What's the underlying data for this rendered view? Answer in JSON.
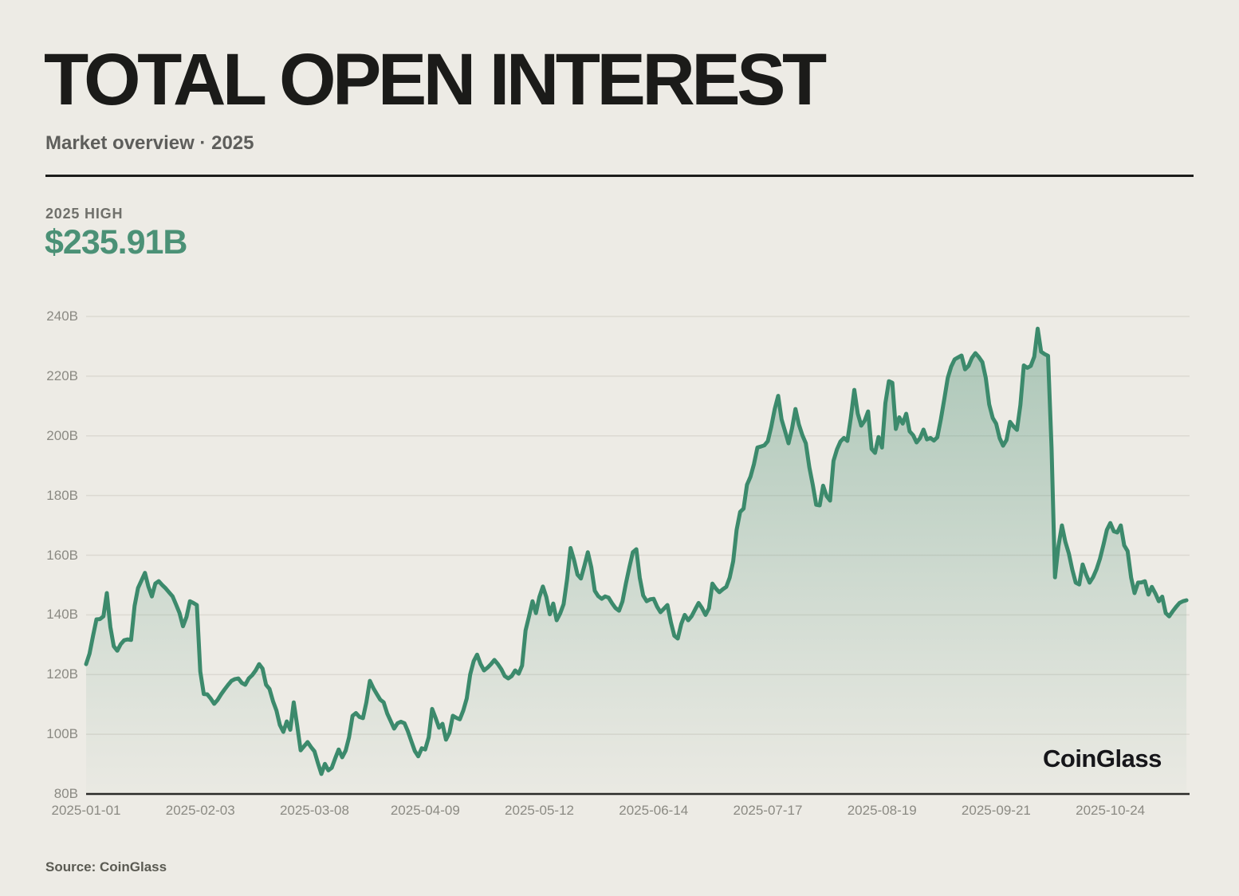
{
  "header": {
    "title": "TOTAL OPEN INTEREST",
    "subtitle": "Market overview · 2025"
  },
  "stat": {
    "label": "2025 HIGH",
    "value": "$235.91B"
  },
  "watermark": "CoinGlass",
  "footer": {
    "source": "Source: CoinGlass"
  },
  "colors": {
    "background": "#edebe5",
    "line": "#3c8a6c",
    "fill": "#4f9377",
    "accent_text": "#4b9176",
    "grid": "#dcd9d2",
    "axis": "#2a2a27",
    "muted_label": "#8b8a83",
    "title": "#1b1b19"
  },
  "chart_data": {
    "type": "area",
    "title": "Total Open Interest 2025",
    "unit": "billions USD",
    "ylim": [
      80,
      240
    ],
    "grid": true,
    "high_2025": 235.91,
    "start_date": "2025-01-01",
    "sampling": "daily",
    "y_ticks": [
      {
        "label": "240B",
        "value": 240
      },
      {
        "label": "220B",
        "value": 220
      },
      {
        "label": "200B",
        "value": 200
      },
      {
        "label": "180B",
        "value": 180
      },
      {
        "label": "160B",
        "value": 160
      },
      {
        "label": "140B",
        "value": 140
      },
      {
        "label": "120B",
        "value": 120
      },
      {
        "label": "100B",
        "value": 100
      },
      {
        "label": "80B",
        "value": 80
      }
    ],
    "x_ticks": [
      {
        "label": "2025-01-01",
        "day": 0
      },
      {
        "label": "2025-02-03",
        "day": 33
      },
      {
        "label": "2025-03-08",
        "day": 66
      },
      {
        "label": "2025-04-09",
        "day": 98
      },
      {
        "label": "2025-05-12",
        "day": 131
      },
      {
        "label": "2025-06-14",
        "day": 164
      },
      {
        "label": "2025-07-17",
        "day": 197
      },
      {
        "label": "2025-08-19",
        "day": 230
      },
      {
        "label": "2025-09-21",
        "day": 263
      },
      {
        "label": "2025-10-24",
        "day": 296
      }
    ],
    "values": [
      123.5,
      127,
      133,
      138.5,
      138.6,
      139.5,
      147.3,
      136,
      129.5,
      128,
      130.2,
      131.5,
      131.8,
      131.6,
      143,
      149,
      151.5,
      154.1,
      149.5,
      146.2,
      150.5,
      151.3,
      150,
      148.9,
      147.5,
      146.2,
      143.5,
      140.6,
      136.2,
      139.3,
      144.6,
      144,
      143.3,
      121,
      113.5,
      113.4,
      112,
      110.2,
      111.5,
      113.4,
      115,
      116.5,
      117.9,
      118.5,
      118.7,
      117.2,
      116.6,
      118.7,
      119.8,
      121.4,
      123.5,
      122,
      116.6,
      115.2,
      111.1,
      108,
      103.1,
      100.8,
      104.3,
      101.5,
      110.7,
      103,
      94.6,
      96,
      97.4,
      95.7,
      94.3,
      90.3,
      86.7,
      90.1,
      87.9,
      88.8,
      92,
      94.9,
      92.3,
      94.5,
      99,
      106.2,
      107.1,
      105.8,
      105.4,
      110.7,
      117.9,
      115.5,
      113.5,
      111.6,
      110.7,
      107,
      104.5,
      101.9,
      103.7,
      104.2,
      103.7,
      101,
      97.6,
      94.4,
      92.6,
      95.3,
      94.9,
      99,
      108.5,
      105.5,
      102.2,
      103.5,
      98.2,
      100.5,
      106.2,
      105.5,
      105,
      108,
      112,
      120,
      124.5,
      126.7,
      123.5,
      121.4,
      122.3,
      123.5,
      124.9,
      123.5,
      121.8,
      119.5,
      118.7,
      119.5,
      121.4,
      120.3,
      123,
      134.8,
      139.5,
      144.6,
      140.6,
      146,
      149.5,
      146,
      140.2,
      143.8,
      138.2,
      140.5,
      143.6,
      152,
      162.4,
      158.5,
      153.5,
      152.2,
      156.5,
      161,
      156,
      148.1,
      146.3,
      145.4,
      146.2,
      145.8,
      143.9,
      142.3,
      141.4,
      144.5,
      150.5,
      156,
      161,
      162,
      152.5,
      146.5,
      144.6,
      145.2,
      145.4,
      142.8,
      140.9,
      142.1,
      143.3,
      137.5,
      133,
      132.1,
      137,
      140,
      138.2,
      139.6,
      141.8,
      144,
      142.3,
      140,
      142.2,
      150.5,
      148.8,
      147.6,
      148.6,
      149.4,
      152.5,
      158,
      168.5,
      174.5,
      175.6,
      183.6,
      186.3,
      190.5,
      196.1,
      196.4,
      196.8,
      198.2,
      203,
      209,
      213.4,
      205.5,
      201.5,
      197.5,
      202.5,
      209,
      203.8,
      200.2,
      197.5,
      189.5,
      183.6,
      176.9,
      176.7,
      183.3,
      179.8,
      178.3,
      191.6,
      195.5,
      198.1,
      199.3,
      198.3,
      206,
      215.4,
      207.5,
      203.4,
      205.1,
      208.2,
      195.6,
      194.3,
      199.6,
      196.1,
      211,
      218.3,
      217.8,
      202.3,
      206.2,
      204.1,
      207.4,
      201.5,
      200.2,
      197.8,
      199.2,
      202.1,
      198.8,
      199.3,
      198.4,
      199.5,
      205.5,
      212.2,
      219.4,
      223.2,
      225.6,
      226.3,
      226.9,
      222.3,
      223.4,
      226.1,
      227.7,
      226.4,
      224.7,
      219.4,
      210.5,
      206,
      204.1,
      199.2,
      196.7,
      198.6,
      204.7,
      203.2,
      202,
      210.3,
      223.6,
      222.8,
      223.4,
      226.5,
      235.91,
      228.2,
      227.4,
      226.8,
      196,
      152.6,
      163,
      170,
      164.5,
      160.6,
      155.2,
      150.8,
      150.2,
      156.9,
      153.5,
      150.8,
      152.6,
      155.3,
      158.8,
      163.5,
      168.5,
      170.8,
      168,
      167.6,
      170,
      163.3,
      161.4,
      152.5,
      147.3,
      150.8,
      150.9,
      151.3,
      146.8,
      149.4,
      147.2,
      144.6,
      146.1,
      140.6,
      139.5,
      141.2,
      142.7,
      144,
      144.6,
      144.9
    ]
  }
}
